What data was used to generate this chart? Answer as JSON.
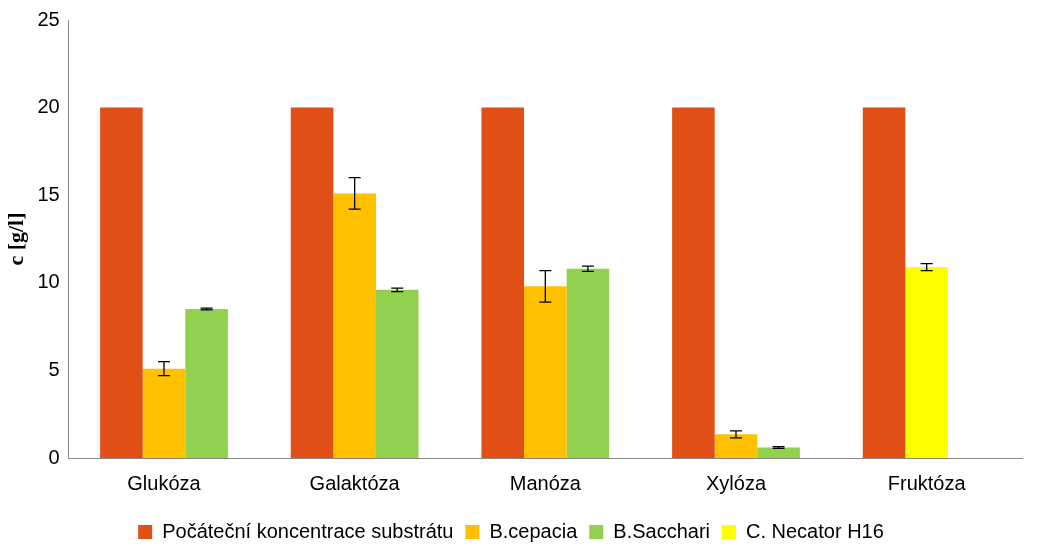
{
  "chart_data": {
    "type": "bar",
    "ylabel": "c [g/l]",
    "categories": [
      "Glukóza",
      "Galaktóza",
      "Manóza",
      "Xylóza",
      "Fruktóza"
    ],
    "series": [
      {
        "name": "Počáteční koncentrace substrátu",
        "color": "#e04f16",
        "values": [
          20,
          20,
          20,
          20,
          20
        ]
      },
      {
        "name": "B.cepacia",
        "color": "#ffc000",
        "values": [
          5.1,
          15.1,
          9.8,
          1.35,
          null
        ],
        "errors": [
          0.4,
          0.9,
          0.9,
          0.2,
          null
        ]
      },
      {
        "name": "B.Sacchari",
        "color": "#92d050",
        "values": [
          8.5,
          9.6,
          10.8,
          0.6,
          null
        ],
        "errors": [
          0.05,
          0.1,
          0.15,
          0.05,
          null
        ]
      },
      {
        "name": "C. Necator H16",
        "color": "#ffff00",
        "values": [
          null,
          null,
          null,
          null,
          10.9
        ],
        "errors": [
          null,
          null,
          null,
          null,
          0.2
        ]
      }
    ],
    "ylim": [
      0,
      25
    ],
    "yticks": [
      0,
      5,
      10,
      15,
      20,
      25
    ],
    "grid": false,
    "legend": "bottom"
  }
}
